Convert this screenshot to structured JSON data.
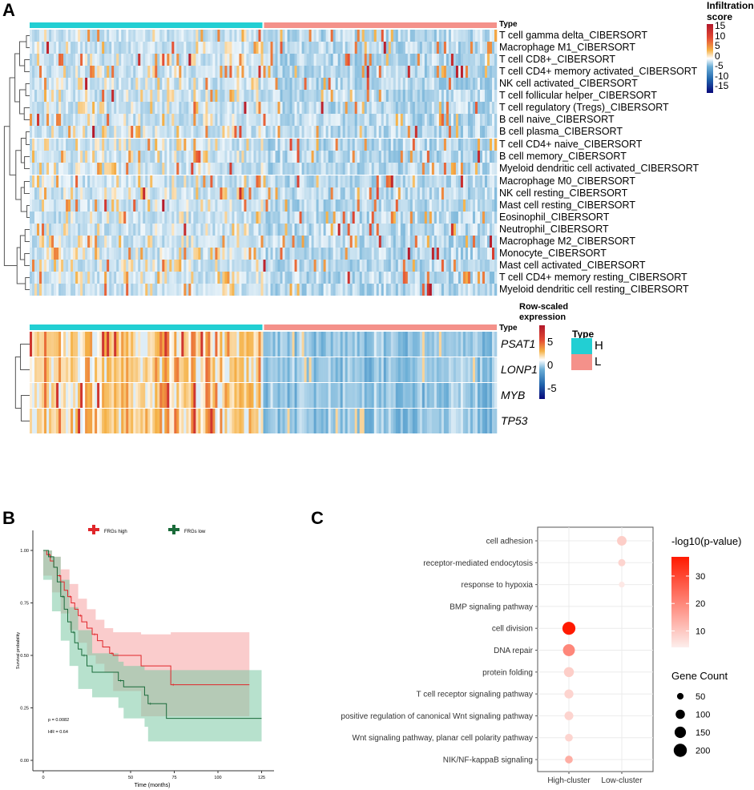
{
  "panels": {
    "a": "A",
    "b": "B",
    "c": "C"
  },
  "chart_data": [
    {
      "type": "heatmap",
      "id": "immune_infiltration",
      "type_label": "Type",
      "groups": [
        {
          "name": "H",
          "color": "#22cfd3",
          "fraction": 0.5
        },
        {
          "name": "L",
          "color": "#f4918a",
          "fraction": 0.5
        }
      ],
      "rows": [
        "T cell gamma delta_CIBERSORT",
        "Macrophage M1_CIBERSORT",
        "T cell CD8+_CIBERSORT",
        "T cell CD4+ memory activated_CIBERSORT",
        "NK cell activated_CIBERSORT",
        "T cell follicular helper_CIBERSORT",
        "T cell regulatory (Tregs)_CIBERSORT",
        "B cell naive_CIBERSORT",
        "B cell plasma_CIBERSORT",
        "T cell CD4+ naive_CIBERSORT",
        "B cell memory_CIBERSORT",
        "Myeloid dendritic cell activated_CIBERSORT",
        "Macrophage M0_CIBERSORT",
        "NK cell resting_CIBERSORT",
        "Mast cell resting_CIBERSORT",
        "Eosinophil_CIBERSORT",
        "Neutrophil_CIBERSORT",
        "Macrophage M2_CIBERSORT",
        "Monocyte_CIBERSORT",
        "Mast cell activated_CIBERSORT",
        "T cell CD4+ memory resting_CIBERSORT",
        "Myeloid dendritic cell resting_CIBERSORT"
      ],
      "legend": {
        "title_line1": "Infiltration",
        "title_line2": "score",
        "ticks": [
          "15",
          "10",
          "5",
          "0",
          "-5",
          "-10",
          "-15"
        ],
        "range": [
          -15,
          15
        ]
      }
    },
    {
      "type": "heatmap",
      "id": "gene_expression",
      "type_label": "Type",
      "rows": [
        "PSAT1",
        "LONP1",
        "MYB",
        "TP53"
      ],
      "legend": {
        "title_line1": "Row-scaled",
        "title_line2": "expression",
        "ticks": [
          "5",
          "0",
          "-5"
        ],
        "range": [
          -7,
          7
        ]
      },
      "group_legend": {
        "title": "Type",
        "items": [
          {
            "label": "H",
            "color": "#22cfd3"
          },
          {
            "label": "L",
            "color": "#f4918a"
          }
        ]
      }
    },
    {
      "type": "line",
      "id": "kaplan_meier",
      "xlabel": "Time (months)",
      "ylabel": "Survival probability",
      "xlim": [
        0,
        130
      ],
      "ylim": [
        0,
        1
      ],
      "xticks": [
        "0",
        "50",
        "75",
        "100",
        "125"
      ],
      "xtick_values": [
        0,
        50,
        75,
        100,
        125
      ],
      "yticks": [
        "0.00",
        "0.25",
        "0.50",
        "0.75",
        "1.00"
      ],
      "ytick_values": [
        0,
        0.25,
        0.5,
        0.75,
        1
      ],
      "annotations": {
        "p": "p = 0.0082",
        "hr": "HR = 0.64"
      },
      "series": [
        {
          "name": "FRGs high",
          "color": "#e0262a",
          "fill": "#f6a3a3",
          "steps": [
            [
              0,
              1
            ],
            [
              2,
              0.98
            ],
            [
              4,
              0.95
            ],
            [
              6,
              0.92
            ],
            [
              8,
              0.88
            ],
            [
              10,
              0.85
            ],
            [
              12,
              0.81
            ],
            [
              14,
              0.78
            ],
            [
              16,
              0.75
            ],
            [
              18,
              0.72
            ],
            [
              20,
              0.69
            ],
            [
              22,
              0.66
            ],
            [
              25,
              0.63
            ],
            [
              28,
              0.6
            ],
            [
              31,
              0.57
            ],
            [
              34,
              0.54
            ],
            [
              38,
              0.51
            ],
            [
              40,
              0.5
            ],
            [
              56,
              0.45
            ],
            [
              73,
              0.36
            ],
            [
              118,
              0.36
            ]
          ],
          "ci": [
            [
              0,
              1,
              1
            ],
            [
              5,
              0.88,
              0.97
            ],
            [
              10,
              0.8,
              0.91
            ],
            [
              15,
              0.7,
              0.84
            ],
            [
              20,
              0.62,
              0.77
            ],
            [
              25,
              0.56,
              0.72
            ],
            [
              30,
              0.5,
              0.67
            ],
            [
              35,
              0.46,
              0.63
            ],
            [
              40,
              0.42,
              0.61
            ],
            [
              56,
              0.33,
              0.6
            ],
            [
              73,
              0.21,
              0.61
            ],
            [
              118,
              0.21,
              0.61
            ]
          ]
        },
        {
          "name": "FRGs low",
          "color": "#1a6b3a",
          "fill": "#7cc9a4",
          "steps": [
            [
              0,
              1
            ],
            [
              3,
              0.97
            ],
            [
              6,
              0.92
            ],
            [
              8,
              0.85
            ],
            [
              10,
              0.78
            ],
            [
              12,
              0.72
            ],
            [
              14,
              0.66
            ],
            [
              16,
              0.61
            ],
            [
              18,
              0.56
            ],
            [
              20,
              0.53
            ],
            [
              22,
              0.5
            ],
            [
              25,
              0.45
            ],
            [
              28,
              0.42
            ],
            [
              43,
              0.38
            ],
            [
              46,
              0.35
            ],
            [
              58,
              0.31
            ],
            [
              60,
              0.27
            ],
            [
              70.5,
              0.2
            ],
            [
              125,
              0.2
            ]
          ],
          "ci": [
            [
              0,
              1,
              1
            ],
            [
              5,
              0.86,
              0.97
            ],
            [
              10,
              0.71,
              0.86
            ],
            [
              15,
              0.57,
              0.73
            ],
            [
              20,
              0.45,
              0.62
            ],
            [
              28,
              0.34,
              0.51
            ],
            [
              43,
              0.3,
              0.47
            ],
            [
              46,
              0.25,
              0.45
            ],
            [
              58,
              0.2,
              0.43
            ],
            [
              60,
              0.16,
              0.43
            ],
            [
              70.5,
              0.09,
              0.43
            ],
            [
              125,
              0.09,
              0.43
            ]
          ]
        }
      ]
    },
    {
      "type": "scatter",
      "id": "go_dotplot",
      "x_categories": [
        "High-cluster",
        "Low-cluster"
      ],
      "terms": [
        "cell adhesion",
        "receptor-mediated endocytosis",
        "response to hypoxia",
        "BMP signaling pathway",
        "cell division",
        "DNA repair",
        "protein folding",
        "T cell receptor signaling pathway",
        "positive regulation of canonical Wnt signaling pathway",
        "Wnt signaling pathway, planar cell polarity pathway",
        "NIK/NF-kappaB signaling"
      ],
      "points": [
        {
          "term": "cell adhesion",
          "cluster": "Low-cluster",
          "count": 105,
          "neglog10p": 9
        },
        {
          "term": "receptor-mediated endocytosis",
          "cluster": "Low-cluster",
          "count": 60,
          "neglog10p": 8
        },
        {
          "term": "response to hypoxia",
          "cluster": "Low-cluster",
          "count": 40,
          "neglog10p": 5
        },
        {
          "term": "cell division",
          "cluster": "High-cluster",
          "count": 195,
          "neglog10p": 37
        },
        {
          "term": "DNA repair",
          "cluster": "High-cluster",
          "count": 165,
          "neglog10p": 20
        },
        {
          "term": "protein folding",
          "cluster": "High-cluster",
          "count": 115,
          "neglog10p": 9
        },
        {
          "term": "T cell receptor signaling pathway",
          "cluster": "High-cluster",
          "count": 95,
          "neglog10p": 8
        },
        {
          "term": "positive regulation of canonical Wnt signaling pathway",
          "cluster": "High-cluster",
          "count": 90,
          "neglog10p": 8
        },
        {
          "term": "Wnt signaling pathway, planar cell polarity pathway",
          "cluster": "High-cluster",
          "count": 70,
          "neglog10p": 8
        },
        {
          "term": "NIK/NF-kappaB signaling",
          "cluster": "High-cluster",
          "count": 70,
          "neglog10p": 14
        }
      ],
      "color_legend": {
        "title": "-log10(p-value)",
        "ticks": [
          "30",
          "20",
          "10"
        ],
        "tick_values": [
          30,
          20,
          10
        ],
        "range": [
          4,
          37
        ],
        "low_color": "#fdeeec",
        "high_color": "#ff1a00"
      },
      "size_legend": {
        "title": "Gene Count",
        "ticks": [
          "50",
          "100",
          "150",
          "200"
        ],
        "tick_values": [
          50,
          100,
          150,
          200
        ]
      }
    }
  ]
}
